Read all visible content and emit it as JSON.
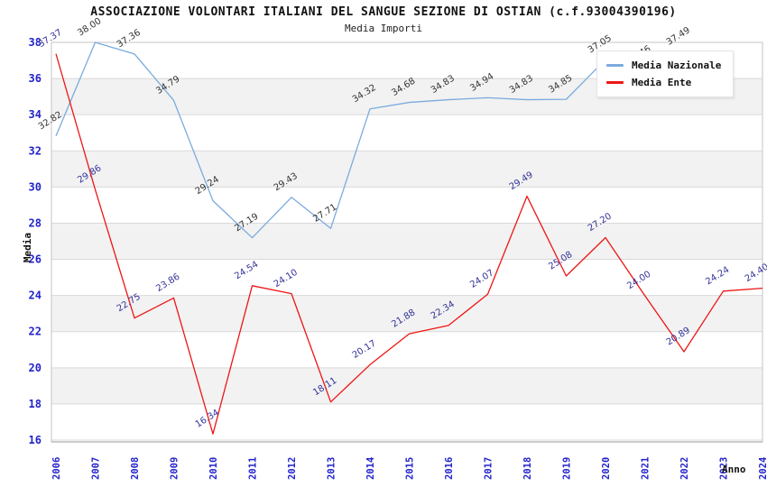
{
  "window": {
    "kind": "statistics-line-chart"
  },
  "chart_data": {
    "type": "line",
    "title": "ASSOCIAZIONE VOLONTARI ITALIANI DEL SANGUE SEZIONE DI OSTIAN (c.f.93004390196)",
    "subtitle": "Media Importi",
    "xlabel": "Anno",
    "ylabel": "Media",
    "ylim": [
      16,
      38
    ],
    "ytick_step": 2,
    "yticks": [
      16,
      18,
      20,
      22,
      24,
      26,
      28,
      30,
      32,
      34,
      36,
      38
    ],
    "grid": "horizontal",
    "alternating_bands": true,
    "legend_position": "top-right",
    "categories": [
      "2006",
      "2007",
      "2008",
      "2009",
      "2010",
      "2011",
      "2012",
      "2013",
      "2014",
      "2015",
      "2016",
      "2017",
      "2018",
      "2019",
      "2020",
      "2021",
      "2022",
      "2023",
      "2024"
    ],
    "series": [
      {
        "name": "Media Nazionale",
        "color": "#7aabde",
        "label_color": "#333333",
        "values": [
          32.82,
          38.0,
          37.36,
          34.79,
          29.24,
          27.19,
          29.43,
          27.71,
          34.32,
          34.68,
          34.83,
          34.94,
          34.83,
          34.85,
          37.05,
          36.46,
          37.49,
          null,
          null
        ]
      },
      {
        "name": "Media Ente",
        "color": "#ee1515",
        "label_color": "#333399",
        "values": [
          37.37,
          29.86,
          22.75,
          23.86,
          16.34,
          24.54,
          24.1,
          18.11,
          20.17,
          21.88,
          22.34,
          24.07,
          29.49,
          25.08,
          27.2,
          24.0,
          20.89,
          24.24,
          24.4
        ]
      }
    ],
    "axis_text_color": "#2323cc",
    "band_color": "#f2f2f2",
    "gridline_color": "#d9d9d9"
  }
}
